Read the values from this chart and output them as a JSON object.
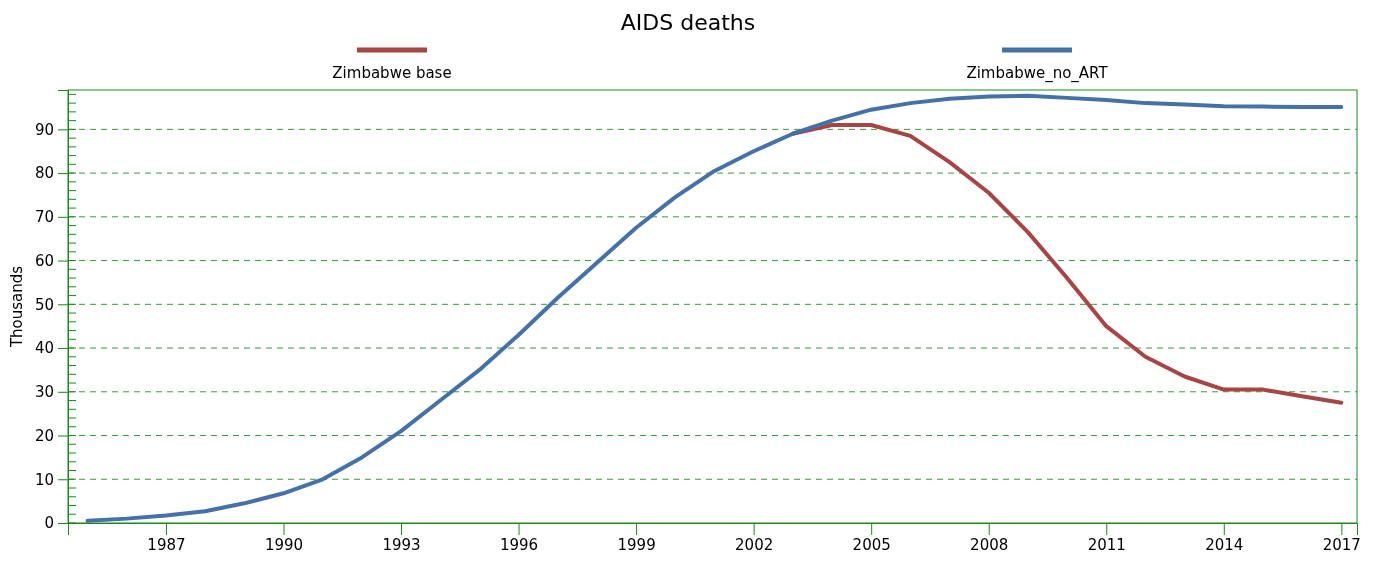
{
  "chart_data": {
    "type": "line",
    "title": "AIDS deaths",
    "ylabel": "Thousands",
    "x": [
      1985,
      1986,
      1987,
      1988,
      1989,
      1990,
      1991,
      1992,
      1993,
      1994,
      1995,
      1996,
      1997,
      1998,
      1999,
      2000,
      2001,
      2002,
      2003,
      2004,
      2005,
      2006,
      2007,
      2008,
      2009,
      2010,
      2011,
      2012,
      2013,
      2014,
      2015,
      2016,
      2017
    ],
    "series": [
      {
        "name": "Zimbabwe base",
        "color": "#a84444",
        "values": [
          null,
          null,
          null,
          null,
          null,
          null,
          null,
          null,
          null,
          null,
          null,
          null,
          null,
          null,
          null,
          null,
          null,
          null,
          89,
          91,
          91,
          88.5,
          82.5,
          75.5,
          66.5,
          56,
          45,
          38,
          33.5,
          30.5,
          30.5,
          29,
          27.5
        ]
      },
      {
        "name": "Zimbabwe_no_ART",
        "color": "#4472a8",
        "values": [
          0.5,
          1,
          1.7,
          2.7,
          4.5,
          6.8,
          10,
          15,
          21,
          28,
          35,
          43,
          51.5,
          59.5,
          67.5,
          74.5,
          80.5,
          85,
          89,
          92,
          94.5,
          96,
          97,
          97.5,
          97.7,
          97.2,
          96.7,
          96,
          95.7,
          95.3,
          95.2,
          95.1,
          95.1
        ]
      }
    ],
    "xlim": [
      1984.5,
      2017.4
    ],
    "xticks": [
      1987,
      1990,
      1993,
      1996,
      1999,
      2002,
      2005,
      2008,
      2011,
      2014,
      2017
    ],
    "ylim": [
      0,
      99
    ],
    "yticks": [
      0,
      10,
      20,
      30,
      40,
      50,
      60,
      70,
      80,
      90
    ],
    "grid": "y",
    "legend": "top",
    "line_style": "solid",
    "marker": "none"
  }
}
